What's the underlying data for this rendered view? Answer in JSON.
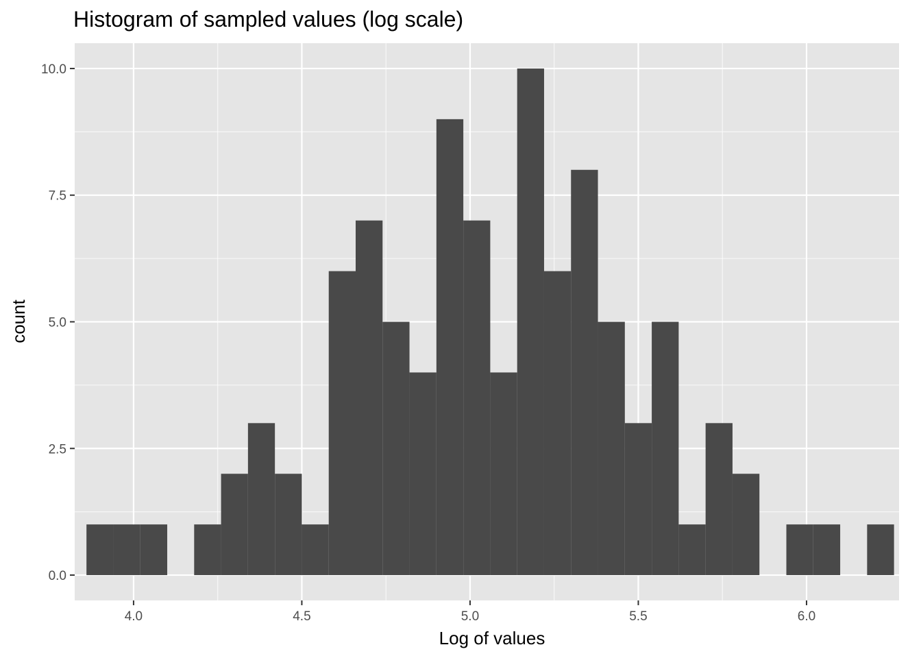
{
  "chart_data": {
    "type": "bar",
    "title": "Histogram of sampled values (log scale)",
    "xlabel": "Log of values",
    "ylabel": "count",
    "xlim": [
      3.825,
      6.275
    ],
    "ylim": [
      -0.5,
      10.5
    ],
    "x_ticks": [
      4.0,
      4.5,
      5.0,
      5.5,
      6.0
    ],
    "x_tick_labels": [
      "4.0",
      "4.5",
      "5.0",
      "5.5",
      "6.0"
    ],
    "y_ticks": [
      0,
      2.5,
      5,
      7.5,
      10
    ],
    "y_tick_labels": [
      "0.0",
      "2.5",
      "5.0",
      "7.5",
      "10.0"
    ],
    "bin_width": 0.08,
    "bins": [
      {
        "center": 3.9,
        "count": 1
      },
      {
        "center": 3.98,
        "count": 1
      },
      {
        "center": 4.06,
        "count": 1
      },
      {
        "center": 4.14,
        "count": 0
      },
      {
        "center": 4.22,
        "count": 1
      },
      {
        "center": 4.3,
        "count": 2
      },
      {
        "center": 4.38,
        "count": 3
      },
      {
        "center": 4.46,
        "count": 2
      },
      {
        "center": 4.54,
        "count": 1
      },
      {
        "center": 4.62,
        "count": 6
      },
      {
        "center": 4.7,
        "count": 7
      },
      {
        "center": 4.78,
        "count": 5
      },
      {
        "center": 4.86,
        "count": 4
      },
      {
        "center": 4.94,
        "count": 9
      },
      {
        "center": 5.02,
        "count": 7
      },
      {
        "center": 5.1,
        "count": 4
      },
      {
        "center": 5.18,
        "count": 10
      },
      {
        "center": 5.26,
        "count": 6
      },
      {
        "center": 5.34,
        "count": 8
      },
      {
        "center": 5.42,
        "count": 5
      },
      {
        "center": 5.5,
        "count": 3
      },
      {
        "center": 5.58,
        "count": 5
      },
      {
        "center": 5.66,
        "count": 1
      },
      {
        "center": 5.74,
        "count": 3
      },
      {
        "center": 5.82,
        "count": 2
      },
      {
        "center": 5.9,
        "count": 0
      },
      {
        "center": 5.98,
        "count": 1
      },
      {
        "center": 6.06,
        "count": 1
      },
      {
        "center": 6.14,
        "count": 0
      },
      {
        "center": 6.22,
        "count": 1
      }
    ],
    "grid": true,
    "colors": {
      "panel_background": "#e5e5e5",
      "grid_major": "#ffffff",
      "bar_fill": "#494949",
      "tick_color": "#333333",
      "tick_label_color": "#4d4d4d"
    }
  }
}
